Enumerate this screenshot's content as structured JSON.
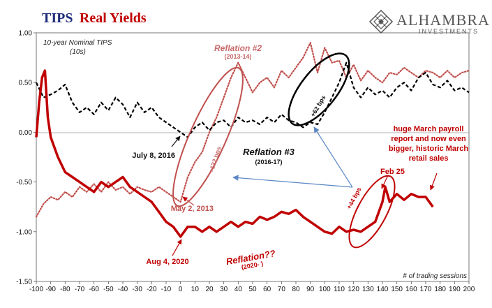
{
  "chart_data": {
    "type": "line",
    "title": {
      "part1": "TIPS",
      "part2": "Real Yields"
    },
    "subtitle_note": [
      "10-year Nominal TIPS",
      "(10s)"
    ],
    "xlabel": "# of trading sessions",
    "xlim": [
      -100,
      200
    ],
    "ylim": [
      -1.5,
      1.0
    ],
    "x_ticks": [
      -100,
      -90,
      -80,
      -70,
      -60,
      -50,
      -40,
      -30,
      -20,
      -10,
      0,
      10,
      20,
      30,
      40,
      50,
      60,
      70,
      80,
      90,
      100,
      110,
      120,
      130,
      140,
      150,
      160,
      170,
      180,
      190,
      200
    ],
    "y_ticks": [
      {
        "value": 1.0,
        "label": "1.00"
      },
      {
        "value": 0.5,
        "label": "0.50"
      },
      {
        "value": 0.0,
        "label": "0.00"
      },
      {
        "value": -0.5,
        "label": "-0.50"
      },
      {
        "value": -1.0,
        "label": "-1.00"
      },
      {
        "value": -1.5,
        "label": "-1.50"
      }
    ],
    "series": [
      {
        "name": "Reflation #2 (2013-14)",
        "style": "dotted",
        "color": "#c0504d",
        "x": [
          -100,
          -95,
          -90,
          -85,
          -80,
          -75,
          -70,
          -65,
          -60,
          -55,
          -50,
          -45,
          -40,
          -35,
          -30,
          -25,
          -20,
          -15,
          -10,
          -5,
          0,
          5,
          10,
          15,
          20,
          25,
          30,
          35,
          40,
          45,
          50,
          55,
          60,
          65,
          70,
          75,
          80,
          85,
          90,
          95,
          100,
          105,
          110,
          115,
          120,
          125,
          130,
          135,
          140,
          145,
          150,
          155,
          160,
          165,
          170,
          175,
          180,
          185,
          190,
          195,
          200
        ],
        "values": [
          -0.85,
          -0.72,
          -0.65,
          -0.68,
          -0.6,
          -0.65,
          -0.55,
          -0.6,
          -0.52,
          -0.6,
          -0.5,
          -0.58,
          -0.55,
          -0.62,
          -0.55,
          -0.58,
          -0.6,
          -0.55,
          -0.6,
          -0.65,
          -0.7,
          -0.45,
          -0.3,
          -0.2,
          0.0,
          0.15,
          0.35,
          0.55,
          0.7,
          0.55,
          0.4,
          0.5,
          0.55,
          0.45,
          0.62,
          0.55,
          0.65,
          0.75,
          0.9,
          0.6,
          0.85,
          0.7,
          0.72,
          0.55,
          0.68,
          0.52,
          0.62,
          0.55,
          0.5,
          0.6,
          0.58,
          0.65,
          0.6,
          0.55,
          0.62,
          0.6,
          0.55,
          0.62,
          0.55,
          0.6,
          0.62
        ]
      },
      {
        "name": "Reflation #3 (2016-17)",
        "style": "dashed",
        "color": "#000000",
        "x": [
          -100,
          -95,
          -90,
          -85,
          -80,
          -75,
          -70,
          -65,
          -60,
          -55,
          -50,
          -45,
          -40,
          -35,
          -30,
          -25,
          -20,
          -15,
          -10,
          -5,
          0,
          5,
          10,
          15,
          20,
          25,
          30,
          35,
          40,
          45,
          50,
          55,
          60,
          65,
          70,
          75,
          80,
          85,
          90,
          95,
          100,
          105,
          110,
          115,
          120,
          125,
          130,
          135,
          140,
          145,
          150,
          155,
          160,
          165,
          170,
          175,
          180,
          185,
          190,
          195,
          200
        ],
        "values": [
          0.5,
          0.35,
          0.38,
          0.42,
          0.48,
          0.3,
          0.2,
          0.25,
          0.18,
          0.3,
          0.22,
          0.35,
          0.28,
          0.15,
          0.3,
          0.2,
          0.25,
          0.15,
          0.1,
          0.05,
          0.0,
          -0.05,
          0.05,
          0.1,
          0.02,
          0.1,
          0.12,
          0.05,
          0.15,
          0.1,
          0.12,
          0.08,
          0.15,
          0.1,
          0.18,
          0.12,
          0.1,
          0.05,
          0.1,
          0.08,
          0.2,
          0.35,
          0.5,
          0.7,
          0.45,
          0.35,
          0.45,
          0.38,
          0.42,
          0.35,
          0.45,
          0.5,
          0.42,
          0.55,
          0.6,
          0.48,
          0.45,
          0.52,
          0.42,
          0.45,
          0.4
        ]
      },
      {
        "name": "Reflation?? (2020-)",
        "style": "solid",
        "color": "#c00000",
        "x": [
          -100,
          -98,
          -96,
          -94,
          -92,
          -90,
          -85,
          -80,
          -75,
          -70,
          -65,
          -60,
          -55,
          -50,
          -45,
          -40,
          -35,
          -30,
          -25,
          -20,
          -15,
          -10,
          -5,
          0,
          5,
          10,
          15,
          20,
          25,
          30,
          35,
          40,
          45,
          50,
          55,
          60,
          65,
          70,
          75,
          80,
          85,
          90,
          95,
          100,
          105,
          110,
          115,
          120,
          125,
          130,
          135,
          140,
          142,
          145,
          150,
          155,
          160,
          165,
          170,
          175
        ],
        "values": [
          -0.05,
          0.3,
          0.55,
          0.62,
          0.15,
          -0.05,
          -0.25,
          -0.4,
          -0.45,
          -0.5,
          -0.55,
          -0.6,
          -0.5,
          -0.55,
          -0.5,
          -0.45,
          -0.55,
          -0.6,
          -0.65,
          -0.7,
          -0.8,
          -0.9,
          -0.95,
          -1.05,
          -0.95,
          -0.95,
          -1.0,
          -0.95,
          -1.0,
          -0.95,
          -0.9,
          -0.95,
          -0.9,
          -0.92,
          -0.85,
          -0.88,
          -0.85,
          -0.8,
          -0.82,
          -0.78,
          -0.85,
          -0.9,
          -0.95,
          -1.0,
          -1.02,
          -0.95,
          -1.0,
          -0.98,
          -1.0,
          -0.95,
          -0.9,
          -0.7,
          -0.55,
          -0.7,
          -0.62,
          -0.68,
          -0.62,
          -0.65,
          -0.65,
          -0.75
        ]
      }
    ],
    "annotations": {
      "reflation2": {
        "label": "Reflation #2",
        "sub": "(2013-14)"
      },
      "bps132": "+132 bps",
      "may2013": "May 2, 2013",
      "july2016": "July 8, 2016",
      "reflation3": {
        "label": "Reflation #3",
        "sub": "(2016-17)"
      },
      "bps62": "+62 bps",
      "bps44": "+44 bps",
      "feb25": "Feb 25",
      "march_note": [
        "huge March payroll",
        "report and now even",
        "bigger, historic March",
        "retail sales"
      ],
      "aug2020": "Aug 4, 2020",
      "reflationq": {
        "label": "Reflation??",
        "sub": "(2020- )"
      }
    }
  },
  "logo": {
    "name": "ALHAMBRA",
    "sub": "INVESTMENTS"
  },
  "colors": {
    "red": "#c00000",
    "pink": "#c86a6a",
    "navy": "#1f2d7a",
    "arrow_blue": "#5b87c5"
  }
}
